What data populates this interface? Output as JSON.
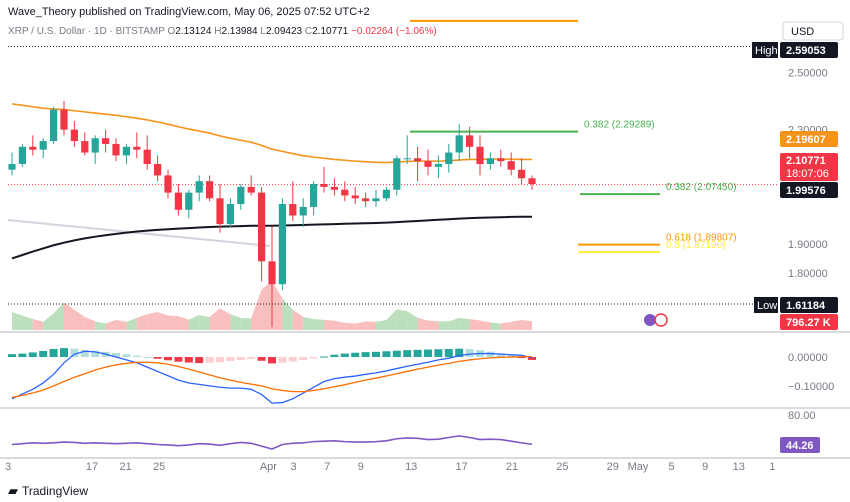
{
  "header": {
    "publisher": "Wave_Theory published on TradingView.com, May 06, 2025 07:52 UTC+2"
  },
  "symbol_bar": {
    "pair": "XRP / U.S. Dollar · 1D · BITSTAMP",
    "open_label": "O",
    "open": "2.13124",
    "high_label": "H",
    "high": "2.13984",
    "low_label": "L",
    "low": "2.09423",
    "close_label": "C",
    "close": "2.10771",
    "change": "−0.02264 (−1.06%)"
  },
  "currency": "USD",
  "footer": {
    "brand": "TradingView"
  },
  "colors": {
    "up": "#26a69a",
    "down": "#f23645",
    "ema50": "#f7931a",
    "ema200": "#131722",
    "fib_green": "#4caf50",
    "fib_orange": "#ff9800",
    "fib_yellow": "#ffeb3b",
    "macd_line": "#2962ff",
    "signal_line": "#ff6d00",
    "rsi_line": "#7e57c2"
  },
  "chart_data": [
    {
      "type": "candlestick",
      "title": "",
      "ylim": [
        1.6,
        2.69
      ],
      "y_ticks": [
        "2.50000",
        "2.30000",
        "2.10000",
        "1.90000",
        "1.80000",
        "1.70000"
      ],
      "y_tick_values": [
        2.5,
        2.3,
        2.1,
        1.9,
        1.8,
        1.7
      ],
      "x_tick_labels": [
        "3",
        "17",
        "21",
        "25",
        "Apr",
        "3",
        "7",
        "9",
        "13",
        "17",
        "21",
        "25",
        "29",
        "May",
        "5",
        "9",
        "13",
        "1"
      ],
      "x_tick_index": [
        0,
        10,
        14,
        18,
        31,
        34,
        38,
        42,
        48,
        54,
        60,
        66,
        72,
        75,
        79,
        83,
        87,
        91
      ],
      "candles": [
        {
          "o": 2.16,
          "h": 2.22,
          "l": 2.14,
          "c": 2.18
        },
        {
          "o": 2.18,
          "h": 2.25,
          "l": 2.17,
          "c": 2.24
        },
        {
          "o": 2.24,
          "h": 2.28,
          "l": 2.21,
          "c": 2.23
        },
        {
          "o": 2.23,
          "h": 2.27,
          "l": 2.2,
          "c": 2.26
        },
        {
          "o": 2.26,
          "h": 2.38,
          "l": 2.25,
          "c": 2.37
        },
        {
          "o": 2.37,
          "h": 2.4,
          "l": 2.28,
          "c": 2.3
        },
        {
          "o": 2.3,
          "h": 2.33,
          "l": 2.24,
          "c": 2.26
        },
        {
          "o": 2.26,
          "h": 2.29,
          "l": 2.21,
          "c": 2.22
        },
        {
          "o": 2.22,
          "h": 2.28,
          "l": 2.18,
          "c": 2.27
        },
        {
          "o": 2.27,
          "h": 2.3,
          "l": 2.22,
          "c": 2.25
        },
        {
          "o": 2.25,
          "h": 2.27,
          "l": 2.19,
          "c": 2.21
        },
        {
          "o": 2.21,
          "h": 2.25,
          "l": 2.18,
          "c": 2.24
        },
        {
          "o": 2.24,
          "h": 2.29,
          "l": 2.2,
          "c": 2.23
        },
        {
          "o": 2.23,
          "h": 2.28,
          "l": 2.16,
          "c": 2.18
        },
        {
          "o": 2.18,
          "h": 2.21,
          "l": 2.12,
          "c": 2.14
        },
        {
          "o": 2.14,
          "h": 2.16,
          "l": 2.06,
          "c": 2.08
        },
        {
          "o": 2.08,
          "h": 2.11,
          "l": 2.0,
          "c": 2.02
        },
        {
          "o": 2.02,
          "h": 2.09,
          "l": 1.99,
          "c": 2.08
        },
        {
          "o": 2.08,
          "h": 2.14,
          "l": 2.05,
          "c": 2.12
        },
        {
          "o": 2.12,
          "h": 2.14,
          "l": 2.05,
          "c": 2.06
        },
        {
          "o": 2.06,
          "h": 2.11,
          "l": 1.94,
          "c": 1.97
        },
        {
          "o": 1.97,
          "h": 2.06,
          "l": 1.96,
          "c": 2.04
        },
        {
          "o": 2.04,
          "h": 2.11,
          "l": 2.02,
          "c": 2.1
        },
        {
          "o": 2.1,
          "h": 2.14,
          "l": 2.07,
          "c": 2.08
        },
        {
          "o": 2.08,
          "h": 2.1,
          "l": 1.77,
          "c": 1.84
        },
        {
          "o": 1.84,
          "h": 1.96,
          "l": 1.61,
          "c": 1.76
        },
        {
          "o": 1.76,
          "h": 2.06,
          "l": 1.74,
          "c": 2.04
        },
        {
          "o": 2.04,
          "h": 2.12,
          "l": 1.98,
          "c": 2.0
        },
        {
          "o": 2.0,
          "h": 2.06,
          "l": 1.96,
          "c": 2.03
        },
        {
          "o": 2.03,
          "h": 2.12,
          "l": 2.0,
          "c": 2.11
        },
        {
          "o": 2.11,
          "h": 2.17,
          "l": 2.08,
          "c": 2.1
        },
        {
          "o": 2.1,
          "h": 2.13,
          "l": 2.07,
          "c": 2.09
        },
        {
          "o": 2.09,
          "h": 2.12,
          "l": 2.05,
          "c": 2.07
        },
        {
          "o": 2.07,
          "h": 2.1,
          "l": 2.04,
          "c": 2.06
        },
        {
          "o": 2.06,
          "h": 2.08,
          "l": 2.03,
          "c": 2.05
        },
        {
          "o": 2.05,
          "h": 2.09,
          "l": 2.03,
          "c": 2.06
        },
        {
          "o": 2.06,
          "h": 2.1,
          "l": 2.05,
          "c": 2.09
        },
        {
          "o": 2.09,
          "h": 2.21,
          "l": 2.07,
          "c": 2.2
        },
        {
          "o": 2.2,
          "h": 2.28,
          "l": 2.18,
          "c": 2.2
        },
        {
          "o": 2.2,
          "h": 2.24,
          "l": 2.12,
          "c": 2.19
        },
        {
          "o": 2.19,
          "h": 2.23,
          "l": 2.14,
          "c": 2.17
        },
        {
          "o": 2.17,
          "h": 2.21,
          "l": 2.13,
          "c": 2.18
        },
        {
          "o": 2.18,
          "h": 2.25,
          "l": 2.15,
          "c": 2.22
        },
        {
          "o": 2.22,
          "h": 2.32,
          "l": 2.19,
          "c": 2.28
        },
        {
          "o": 2.28,
          "h": 2.31,
          "l": 2.2,
          "c": 2.24
        },
        {
          "o": 2.24,
          "h": 2.28,
          "l": 2.14,
          "c": 2.18
        },
        {
          "o": 2.18,
          "h": 2.22,
          "l": 2.16,
          "c": 2.2
        },
        {
          "o": 2.2,
          "h": 2.23,
          "l": 2.17,
          "c": 2.19
        },
        {
          "o": 2.19,
          "h": 2.22,
          "l": 2.14,
          "c": 2.16
        },
        {
          "o": 2.16,
          "h": 2.2,
          "l": 2.11,
          "c": 2.13
        },
        {
          "o": 2.13,
          "h": 2.14,
          "l": 2.09,
          "c": 2.11
        }
      ],
      "ema50": [
        2.39,
        2.385,
        2.38,
        2.375,
        2.372,
        2.37,
        2.366,
        2.362,
        2.358,
        2.354,
        2.35,
        2.345,
        2.34,
        2.334,
        2.327,
        2.319,
        2.31,
        2.302,
        2.295,
        2.288,
        2.278,
        2.27,
        2.263,
        2.256,
        2.245,
        2.232,
        2.224,
        2.216,
        2.209,
        2.204,
        2.2,
        2.196,
        2.193,
        2.19,
        2.188,
        2.186,
        2.185,
        2.187,
        2.189,
        2.19,
        2.19,
        2.19,
        2.191,
        2.194,
        2.196,
        2.196,
        2.197,
        2.197,
        2.197,
        2.196,
        2.196
      ],
      "ema200": [
        1.85,
        1.862,
        1.874,
        1.885,
        1.896,
        1.905,
        1.913,
        1.92,
        1.926,
        1.931,
        1.936,
        1.94,
        1.944,
        1.947,
        1.95,
        1.952,
        1.954,
        1.956,
        1.958,
        1.96,
        1.961,
        1.962,
        1.963,
        1.964,
        1.964,
        1.964,
        1.965,
        1.966,
        1.967,
        1.968,
        1.969,
        1.97,
        1.971,
        1.972,
        1.973,
        1.974,
        1.975,
        1.977,
        1.979,
        1.981,
        1.983,
        1.985,
        1.987,
        1.989,
        1.991,
        1.992,
        1.993,
        1.994,
        1.995,
        1.9955,
        1.99576
      ],
      "resistance_upper": 2.68,
      "fib_levels": [
        {
          "label": "0.382 (2.29289)",
          "value": 2.29289,
          "color": "#4caf50"
        },
        {
          "label": "0.382 (2.07450)",
          "value": 2.0745,
          "color": "#4caf50"
        },
        {
          "label": "0.618 (1.89807)",
          "value": 1.89807,
          "color": "#ff9800"
        },
        {
          "label": "0.5 (1.87190)",
          "value": 1.8719,
          "color": "#ffeb3b"
        }
      ],
      "markers": {
        "high": {
          "label": "High",
          "value_text": "2.59053",
          "value": 2.59053
        },
        "low": {
          "label": "Low",
          "value_text": "1.61184",
          "value": 1.61184
        },
        "ema50_value": {
          "text": "2.19607",
          "value": 2.19607
        },
        "last_price": {
          "text": "2.10771",
          "value": 2.10771,
          "countdown": "18:07:06"
        },
        "ema200_value": {
          "text": "1.99576",
          "value": 1.99576
        },
        "volume_value": {
          "text": "796.27 K"
        }
      },
      "volume": [
        0.62,
        0.5,
        0.38,
        0.28,
        0.58,
        0.95,
        0.7,
        0.45,
        0.3,
        0.22,
        0.35,
        0.28,
        0.42,
        0.55,
        0.62,
        0.5,
        0.48,
        0.36,
        0.52,
        0.45,
        0.75,
        0.55,
        0.42,
        0.4,
        1.4,
        1.7,
        1.1,
        0.7,
        0.45,
        0.38,
        0.35,
        0.32,
        0.25,
        0.22,
        0.3,
        0.28,
        0.35,
        0.72,
        0.65,
        0.42,
        0.33,
        0.3,
        0.3,
        0.42,
        0.38,
        0.33,
        0.26,
        0.22,
        0.28,
        0.35,
        0.3
      ]
    },
    {
      "type": "bar",
      "title": "",
      "ylim": [
        -0.17,
        0.08
      ],
      "y_ticks": [
        "0.00000",
        "−0.10000"
      ],
      "y_tick_values": [
        0.0,
        -0.1
      ],
      "histogram": [
        0.01,
        0.012,
        0.016,
        0.021,
        0.028,
        0.031,
        0.029,
        0.025,
        0.022,
        0.018,
        0.014,
        0.01,
        0.005,
        0.0,
        -0.006,
        -0.011,
        -0.016,
        -0.019,
        -0.021,
        -0.02,
        -0.018,
        -0.014,
        -0.01,
        -0.007,
        -0.013,
        -0.022,
        -0.02,
        -0.015,
        -0.01,
        -0.005,
        0.002,
        0.008,
        0.012,
        0.015,
        0.017,
        0.018,
        0.02,
        0.022,
        0.024,
        0.025,
        0.026,
        0.027,
        0.028,
        0.029,
        0.028,
        0.024,
        0.019,
        0.013,
        0.006,
        -0.002,
        -0.01
      ],
      "macd": [
        -0.145,
        -0.128,
        -0.112,
        -0.09,
        -0.06,
        -0.02,
        0.01,
        0.02,
        0.018,
        0.01,
        0.0,
        -0.01,
        -0.02,
        -0.035,
        -0.05,
        -0.065,
        -0.08,
        -0.09,
        -0.095,
        -0.1,
        -0.105,
        -0.108,
        -0.108,
        -0.112,
        -0.13,
        -0.16,
        -0.158,
        -0.145,
        -0.125,
        -0.105,
        -0.085,
        -0.075,
        -0.07,
        -0.066,
        -0.06,
        -0.055,
        -0.048,
        -0.04,
        -0.032,
        -0.025,
        -0.018,
        -0.01,
        -0.004,
        0.005,
        0.01,
        0.012,
        0.012,
        0.01,
        0.008,
        0.006,
        -0.003
      ],
      "signal": [
        -0.14,
        -0.133,
        -0.125,
        -0.115,
        -0.1,
        -0.085,
        -0.07,
        -0.058,
        -0.045,
        -0.035,
        -0.027,
        -0.022,
        -0.018,
        -0.018,
        -0.02,
        -0.025,
        -0.033,
        -0.042,
        -0.052,
        -0.062,
        -0.072,
        -0.08,
        -0.088,
        -0.094,
        -0.1,
        -0.11,
        -0.116,
        -0.12,
        -0.12,
        -0.116,
        -0.11,
        -0.103,
        -0.096,
        -0.088,
        -0.08,
        -0.073,
        -0.066,
        -0.058,
        -0.05,
        -0.042,
        -0.035,
        -0.028,
        -0.022,
        -0.015,
        -0.01,
        -0.006,
        -0.003,
        -0.001,
        0.0,
        0.001,
        0.002
      ]
    },
    {
      "type": "line",
      "title": "",
      "ylim": [
        30,
        86
      ],
      "y_ticks": [
        "80.00"
      ],
      "y_tick_values": [
        80
      ],
      "rsi_value_text": "44.26",
      "rsi": [
        44,
        45,
        46,
        45.5,
        46,
        47,
        46.5,
        45.5,
        46,
        45.5,
        45,
        45.5,
        46,
        45,
        44,
        43.5,
        42.5,
        43.5,
        45,
        44.5,
        43,
        45,
        46.5,
        45.5,
        42,
        38.5,
        44,
        45.5,
        46,
        47.5,
        48,
        48.5,
        47.5,
        47,
        47,
        47.5,
        48.5,
        51,
        52,
        51.5,
        50,
        50.5,
        52.5,
        54.5,
        52.5,
        50,
        50.5,
        50,
        48,
        46,
        44.3
      ]
    }
  ]
}
